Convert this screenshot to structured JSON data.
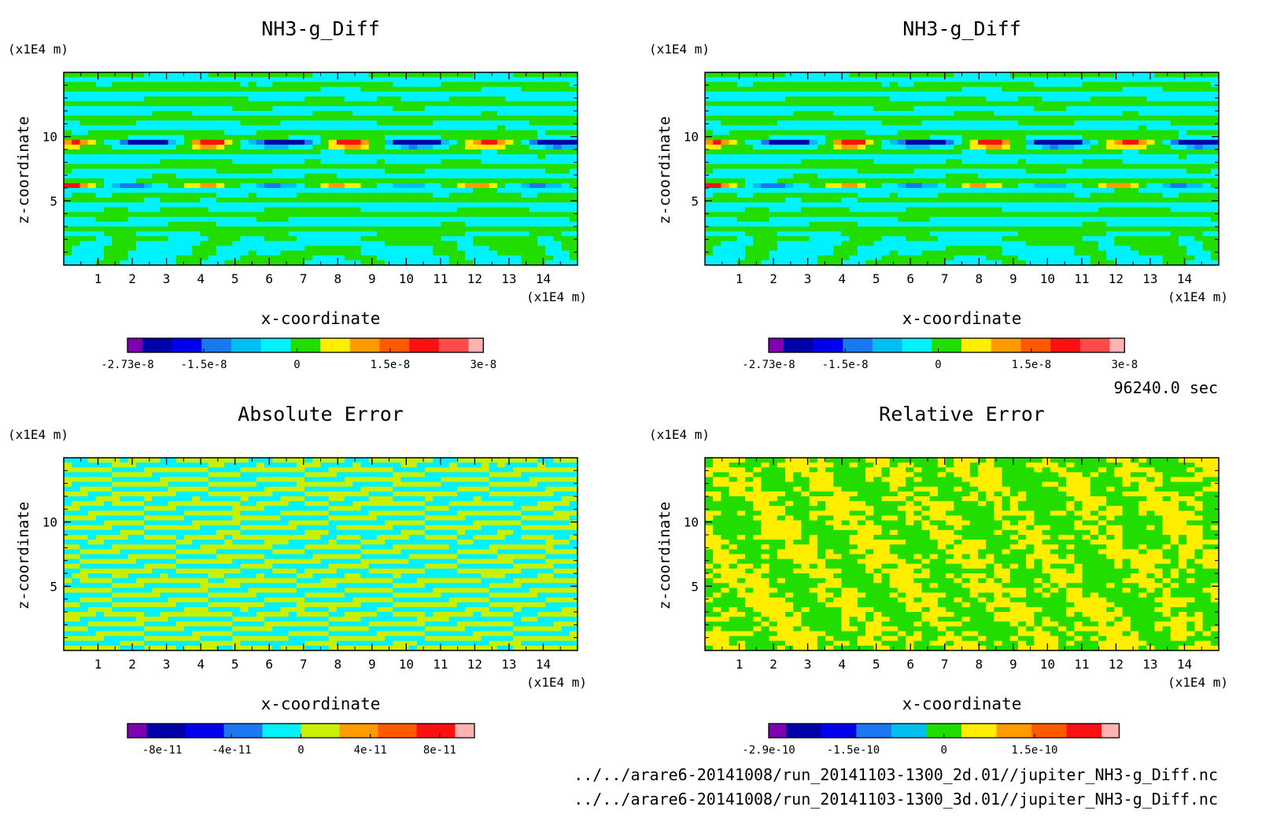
{
  "time_label": "96240.0 sec",
  "file_paths": [
    "../../arare6-20141008/run_20141103-1300_2d.01//jupiter_NH3-g_Diff.nc",
    "../../arare6-20141008/run_20141103-1300_3d.01//jupiter_NH3-g_Diff.nc"
  ],
  "chart_data": [
    {
      "type": "heatmap",
      "title": "NH3-g_Diff",
      "xlabel": "x-coordinate",
      "ylabel": "z-coordinate",
      "x_unit": "(x1E4 m)",
      "y_unit": "(x1E4 m)",
      "xlim": [
        0,
        15
      ],
      "ylim": [
        0,
        15
      ],
      "x_ticks": [
        "1",
        "2",
        "3",
        "4",
        "5",
        "6",
        "7",
        "8",
        "9",
        "10",
        "11",
        "12",
        "13",
        "14"
      ],
      "y_ticks": [
        "5",
        "10"
      ],
      "colorbar": {
        "colors": [
          "#7f00b0",
          "#0000a8",
          "#0000ee",
          "#1a78f0",
          "#00bff0",
          "#00f2ff",
          "#22dd00",
          "#ffee00",
          "#ff9a00",
          "#ff5a00",
          "#ff1010",
          "#ff4a4a",
          "#ffb2b2"
        ],
        "tick_labels": [
          "-2.73e-8",
          "-1.5e-8",
          "0",
          "1.5e-8",
          "3e-8"
        ],
        "range": [
          -2.73e-08,
          3e-08
        ]
      }
    },
    {
      "type": "heatmap",
      "title": "NH3-g_Diff",
      "xlabel": "x-coordinate",
      "ylabel": "z-coordinate",
      "x_unit": "(x1E4 m)",
      "y_unit": "(x1E4 m)",
      "xlim": [
        0,
        15
      ],
      "ylim": [
        0,
        15
      ],
      "x_ticks": [
        "1",
        "2",
        "3",
        "4",
        "5",
        "6",
        "7",
        "8",
        "9",
        "10",
        "11",
        "12",
        "13",
        "14"
      ],
      "y_ticks": [
        "5",
        "10"
      ],
      "colorbar": {
        "colors": [
          "#7f00b0",
          "#0000a8",
          "#0000ee",
          "#1a78f0",
          "#00bff0",
          "#00f2ff",
          "#22dd00",
          "#ffee00",
          "#ff9a00",
          "#ff5a00",
          "#ff1010",
          "#ff4a4a",
          "#ffb2b2"
        ],
        "tick_labels": [
          "-2.73e-8",
          "-1.5e-8",
          "0",
          "1.5e-8",
          "3e-8"
        ],
        "range": [
          -2.73e-08,
          3e-08
        ]
      }
    },
    {
      "type": "heatmap",
      "title": "Absolute Error",
      "xlabel": "x-coordinate",
      "ylabel": "z-coordinate",
      "x_unit": "(x1E4 m)",
      "y_unit": "(x1E4 m)",
      "xlim": [
        0,
        15
      ],
      "ylim": [
        0,
        15
      ],
      "x_ticks": [
        "1",
        "2",
        "3",
        "4",
        "5",
        "6",
        "7",
        "8",
        "9",
        "10",
        "11",
        "12",
        "13",
        "14"
      ],
      "y_ticks": [
        "5",
        "10"
      ],
      "colorbar": {
        "colors": [
          "#7f00b0",
          "#0000a8",
          "#0000ee",
          "#1a78f0",
          "#00f2ff",
          "#c8f000",
          "#ff9a00",
          "#ff5a00",
          "#ff1010",
          "#ffb2b2"
        ],
        "tick_labels": [
          "-8e-11",
          "-4e-11",
          "0",
          "4e-11",
          "8e-11"
        ],
        "range": [
          -1e-10,
          1e-10
        ]
      }
    },
    {
      "type": "heatmap",
      "title": "Relative Error",
      "xlabel": "x-coordinate",
      "ylabel": "z-coordinate",
      "x_unit": "(x1E4 m)",
      "y_unit": "(x1E4 m)",
      "xlim": [
        0,
        15
      ],
      "ylim": [
        0,
        15
      ],
      "x_ticks": [
        "1",
        "2",
        "3",
        "4",
        "5",
        "6",
        "7",
        "8",
        "9",
        "10",
        "11",
        "12",
        "13",
        "14"
      ],
      "y_ticks": [
        "5",
        "10"
      ],
      "colorbar": {
        "colors": [
          "#7f00b0",
          "#0000a8",
          "#0000ee",
          "#1a78f0",
          "#00bff0",
          "#22dd00",
          "#ffee00",
          "#ff9a00",
          "#ff5a00",
          "#ff1010",
          "#ffb2b2"
        ],
        "tick_labels": [
          "-2.9e-10",
          "-1.5e-10",
          "0",
          "1.5e-10"
        ],
        "range": [
          -2.9e-10,
          2.9e-10
        ]
      }
    }
  ]
}
